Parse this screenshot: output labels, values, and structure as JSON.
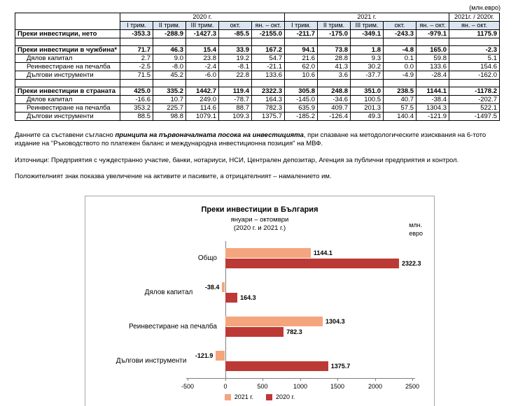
{
  "unit_note": "(млн.евро)",
  "table": {
    "groups": [
      {
        "label": "2020 г.",
        "span": 5
      },
      {
        "label": "2021 г.",
        "span": 5
      },
      {
        "label": "2021г. / 2020г.",
        "span": 1
      }
    ],
    "sub_headers": [
      "I трим.",
      "II трим.",
      "III трим.",
      "окт.",
      "ян. – окт.",
      "I трим.",
      "II трим.",
      "III трим.",
      "окт.",
      "ян. – окт.",
      "ян. – окт."
    ],
    "rows": [
      {
        "label": "Преки инвестиции, нето",
        "style": "bold",
        "values": [
          "-353.3",
          "-288.9",
          "-1427.3",
          "-85.5",
          "-2155.0",
          "-211.7",
          "-175.0",
          "-349.1",
          "-243.3",
          "-979.1",
          "1175.9"
        ]
      },
      {
        "spacer": true
      },
      {
        "label": "Преки инвестиции в чужбина*",
        "style": "bold",
        "values": [
          "71.7",
          "46.3",
          "15.4",
          "33.9",
          "167.2",
          "94.1",
          "73.8",
          "1.8",
          "-4.8",
          "165.0",
          "-2.3"
        ]
      },
      {
        "label": "Дялов капитал",
        "style": "sub",
        "values": [
          "2.7",
          "9.0",
          "23.8",
          "19.2",
          "54.7",
          "21.6",
          "28.8",
          "9.3",
          "0.1",
          "59.8",
          "5.1"
        ]
      },
      {
        "label": "Реинвестиране на печалба",
        "style": "sub",
        "values": [
          "-2.5",
          "-8.0",
          "-2.4",
          "-8.1",
          "-21.1",
          "62.0",
          "41.3",
          "30.2",
          "0.0",
          "133.6",
          "154.6"
        ]
      },
      {
        "label": "Дългови инструменти",
        "style": "sub",
        "values": [
          "71.5",
          "45.2",
          "-6.0",
          "22.8",
          "133.6",
          "10.6",
          "3.6",
          "-37.7",
          "-4.9",
          "-28.4",
          "-162.0"
        ]
      },
      {
        "spacer": true
      },
      {
        "label": "Преки инвестиции в страната",
        "style": "bold",
        "values": [
          "425.0",
          "335.2",
          "1442.7",
          "119.4",
          "2322.3",
          "305.8",
          "248.8",
          "351.0",
          "238.5",
          "1144.1",
          "-1178.2"
        ]
      },
      {
        "label": "Дялов капитал",
        "style": "sub",
        "values": [
          "-16.6",
          "10.7",
          "249.0",
          "-78.7",
          "164.3",
          "-145.0",
          "-34.6",
          "100.5",
          "40.7",
          "-38.4",
          "-202.7"
        ]
      },
      {
        "label": "Реинвестиране на печалба",
        "style": "sub",
        "values": [
          "353.2",
          "225.7",
          "114.6",
          "88.7",
          "782.3",
          "635.9",
          "409.7",
          "201.3",
          "57.5",
          "1304.3",
          "522.1"
        ]
      },
      {
        "label": "Дългови инструменти",
        "style": "sub",
        "values": [
          "88.5",
          "98.8",
          "1079.1",
          "109.3",
          "1375.7",
          "-185.2",
          "-126.4",
          "49.3",
          "140.4",
          "-121.9",
          "-1497.5"
        ]
      }
    ]
  },
  "notes": {
    "methodology_prefix": "Данните са съставени съгласно ",
    "methodology_italic": "принципа на първоначалната посока на инвестицията",
    "methodology_suffix": ", при спазване на методологическите изисквания на 6-тото издание на \"Ръководството по платежен баланс и международна инвестиционна позиция\" на МВФ.",
    "sources": "Източници: Предприятия с чуждестранно участие, банки, нотариуси, НСИ, Централен депозитар, Агенция за публични предприятия и контрол.",
    "sign": "Положителният знак показва увеличение на активите и пасивите, а отрицателният – намалението им."
  },
  "chart_data": {
    "type": "bar",
    "orientation": "horizontal",
    "title": "Преки инвестиции в България",
    "subtitle1": "януари – октомври",
    "subtitle2": "(2020 г. и 2021 г.)",
    "unit_line1": "млн.",
    "unit_line2": "евро",
    "categories": [
      "Общо",
      "Дялов капитал",
      "Реинвестиране на печалба",
      "Дългови инструменти"
    ],
    "series": [
      {
        "name": "2021 г.",
        "color": "#f5a57e",
        "values": [
          1144.1,
          -38.4,
          1304.3,
          -121.9
        ]
      },
      {
        "name": "2020 г.",
        "color": "#bc3a35",
        "values": [
          2322.3,
          164.3,
          782.3,
          1375.7
        ]
      }
    ],
    "xlim": [
      -500,
      2500
    ],
    "xticks": [
      -500,
      0,
      500,
      1000,
      1500,
      2000,
      2500
    ],
    "legend_position": "bottom",
    "grid": false
  }
}
